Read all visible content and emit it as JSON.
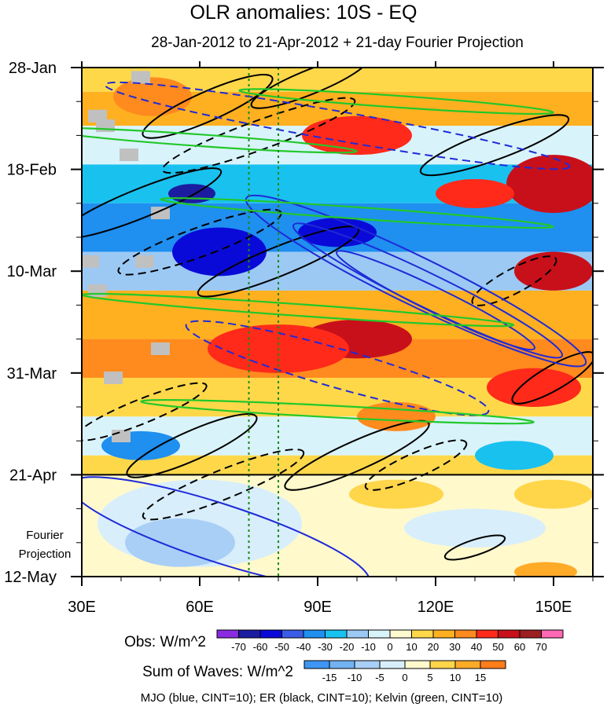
{
  "chart_data": {
    "type": "heatmap",
    "title": "OLR anomalies: 10S - EQ",
    "subtitle": "28-Jan-2012 to 21-Apr-2012 + 21-day Fourier Projection",
    "xlim": [
      30,
      160
    ],
    "ylim_days": [
      0,
      105
    ],
    "x_ticks": [
      {
        "value": 30,
        "label": "30E"
      },
      {
        "value": 60,
        "label": "60E"
      },
      {
        "value": 90,
        "label": "90E"
      },
      {
        "value": 120,
        "label": "120E"
      },
      {
        "value": 150,
        "label": "150E"
      }
    ],
    "y_ticks": [
      {
        "day": 0,
        "label": "28-Jan"
      },
      {
        "day": 21,
        "label": "18-Feb"
      },
      {
        "day": 42,
        "label": "10-Mar"
      },
      {
        "day": 63,
        "label": "31-Mar"
      },
      {
        "day": 84,
        "label": "21-Apr"
      },
      {
        "day": 105,
        "label": "12-May"
      }
    ],
    "projection_start_day": 84,
    "projection_label": [
      "Fourier",
      "Projection"
    ],
    "reference_lines_lon": [
      72.5,
      80
    ],
    "obs_legend": {
      "label": "Obs: W/m^2",
      "levels": [
        "-70",
        "-60",
        "-50",
        "-40",
        "-30",
        "-20",
        "-10",
        "0",
        "10",
        "20",
        "30",
        "40",
        "50",
        "60",
        "70"
      ],
      "colors": [
        "#8a2be2",
        "#1c1ca0",
        "#0a0ad8",
        "#3a5ce6",
        "#1f8ff0",
        "#19c1ef",
        "#9bc9f4",
        "#d9f3fb",
        "#fffad0",
        "#ffd84a",
        "#ffb020",
        "#ff8a1e",
        "#ff2a1a",
        "#c8101a",
        "#9c2020",
        "#ff69b4"
      ]
    },
    "waves_legend": {
      "label": "Sum of Waves: W/m^2",
      "levels": [
        "-15",
        "-10",
        "-5",
        "0",
        "5",
        "10",
        "15"
      ],
      "colors": [
        "#3e96f4",
        "#73b2f2",
        "#a9cff6",
        "#d8eefb",
        "#fff9cc",
        "#ffd54a",
        "#ffab28",
        "#ff7d1a"
      ]
    },
    "footer": "MJO (blue, CINT=10); ER (black, CINT=10); Kelvin (green, CINT=10)",
    "bands": [
      {
        "lon0": 30,
        "lon1": 160,
        "d0": 0,
        "d1": 5,
        "value": 10
      },
      {
        "lon0": 30,
        "lon1": 160,
        "d0": 5,
        "d1": 12,
        "value": 20
      },
      {
        "lon0": 30,
        "lon1": 160,
        "d0": 12,
        "d1": 20,
        "value": -10
      },
      {
        "lon0": 30,
        "lon1": 160,
        "d0": 20,
        "d1": 28,
        "value": -30
      },
      {
        "lon0": 30,
        "lon1": 160,
        "d0": 28,
        "d1": 38,
        "value": -40
      },
      {
        "lon0": 30,
        "lon1": 160,
        "d0": 38,
        "d1": 46,
        "value": -20
      },
      {
        "lon0": 30,
        "lon1": 160,
        "d0": 46,
        "d1": 56,
        "value": 20
      },
      {
        "lon0": 30,
        "lon1": 160,
        "d0": 56,
        "d1": 64,
        "value": 30
      },
      {
        "lon0": 30,
        "lon1": 160,
        "d0": 64,
        "d1": 72,
        "value": 10
      },
      {
        "lon0": 30,
        "lon1": 160,
        "d0": 72,
        "d1": 80,
        "value": -10
      },
      {
        "lon0": 30,
        "lon1": 160,
        "d0": 80,
        "d1": 84,
        "value": 10
      }
    ],
    "patches": [
      {
        "lon": 48,
        "day": 6,
        "rlon": 10,
        "rday": 4,
        "value": 30
      },
      {
        "lon": 100,
        "day": 14,
        "rlon": 14,
        "rday": 4,
        "value": 40
      },
      {
        "lon": 150,
        "day": 24,
        "rlon": 12,
        "rday": 6,
        "value": 50
      },
      {
        "lon": 130,
        "day": 26,
        "rlon": 10,
        "rday": 3,
        "value": 40
      },
      {
        "lon": 65,
        "day": 38,
        "rlon": 12,
        "rday": 5,
        "value": -60
      },
      {
        "lon": 95,
        "day": 34,
        "rlon": 10,
        "rday": 3,
        "value": -60
      },
      {
        "lon": 58,
        "day": 26,
        "rlon": 6,
        "rday": 2,
        "value": -70
      },
      {
        "lon": 100,
        "day": 56,
        "rlon": 14,
        "rday": 4,
        "value": 50
      },
      {
        "lon": 80,
        "day": 58,
        "rlon": 18,
        "rday": 5,
        "value": 40
      },
      {
        "lon": 150,
        "day": 42,
        "rlon": 10,
        "rday": 4,
        "value": 50
      },
      {
        "lon": 145,
        "day": 66,
        "rlon": 12,
        "rday": 4,
        "value": 40
      },
      {
        "lon": 110,
        "day": 72,
        "rlon": 10,
        "rday": 3,
        "value": 30
      },
      {
        "lon": 45,
        "day": 78,
        "rlon": 10,
        "rday": 3,
        "value": -40
      },
      {
        "lon": 140,
        "day": 80,
        "rlon": 10,
        "rday": 3,
        "value": -30
      }
    ],
    "proj_bands": [
      {
        "lon0": 30,
        "lon1": 160,
        "d0": 84,
        "d1": 105,
        "value": 0
      }
    ],
    "proj_patches": [
      {
        "lon": 60,
        "day": 94,
        "rlon": 26,
        "rday": 9,
        "value": -5
      },
      {
        "lon": 55,
        "day": 98,
        "rlon": 14,
        "rday": 5,
        "value": -10
      },
      {
        "lon": 130,
        "day": 95,
        "rlon": 18,
        "rday": 4,
        "value": -5
      },
      {
        "lon": 110,
        "day": 88,
        "rlon": 12,
        "rday": 3,
        "value": 5
      },
      {
        "lon": 148,
        "day": 104,
        "rlon": 8,
        "rday": 2,
        "value": 10
      },
      {
        "lon": 150,
        "day": 88,
        "rlon": 10,
        "rday": 3,
        "value": 5
      }
    ],
    "contours": [
      {
        "series": "ER",
        "color": "#000000",
        "dash": false,
        "lon": 62,
        "day": 8,
        "rlon": 18,
        "rday": 3,
        "angle": -24
      },
      {
        "series": "ER",
        "color": "#000000",
        "dash": false,
        "lon": 88,
        "day": 3,
        "rlon": 16,
        "rday": 2.5,
        "angle": -22
      },
      {
        "series": "ER",
        "color": "#000000",
        "dash": false,
        "lon": 45,
        "day": 28,
        "rlon": 22,
        "rday": 3,
        "angle": -22
      },
      {
        "series": "ER",
        "color": "#000000",
        "dash": false,
        "lon": 80,
        "day": 40,
        "rlon": 22,
        "rday": 3,
        "angle": -22
      },
      {
        "series": "ER",
        "color": "#000000",
        "dash": false,
        "lon": 135,
        "day": 16,
        "rlon": 20,
        "rday": 3,
        "angle": -20
      },
      {
        "series": "ER",
        "color": "#000000",
        "dash": false,
        "lon": 58,
        "day": 78,
        "rlon": 18,
        "rday": 3,
        "angle": -24
      },
      {
        "series": "ER",
        "color": "#000000",
        "dash": false,
        "lon": 100,
        "day": 80,
        "rlon": 20,
        "rday": 3,
        "angle": -24
      },
      {
        "series": "ER",
        "color": "#000000",
        "dash": false,
        "lon": 130,
        "day": 99,
        "rlon": 8,
        "rday": 1.6,
        "angle": -18
      },
      {
        "series": "ER",
        "color": "#000000",
        "dash": false,
        "lon": 150,
        "day": 64,
        "rlon": 12,
        "rday": 2.5,
        "angle": -30
      },
      {
        "series": "ER",
        "color": "#000000",
        "dash": true,
        "lon": 75,
        "day": 14,
        "rlon": 26,
        "rday": 3,
        "angle": -20
      },
      {
        "series": "ER",
        "color": "#000000",
        "dash": true,
        "lon": 60,
        "day": 36,
        "rlon": 22,
        "rday": 3,
        "angle": -20
      },
      {
        "series": "ER",
        "color": "#000000",
        "dash": true,
        "lon": 45,
        "day": 71,
        "rlon": 18,
        "rday": 2.5,
        "angle": -22
      },
      {
        "series": "ER",
        "color": "#000000",
        "dash": true,
        "lon": 66,
        "day": 86,
        "rlon": 22,
        "rday": 3,
        "angle": -22
      },
      {
        "series": "ER",
        "color": "#000000",
        "dash": true,
        "lon": 115,
        "day": 82,
        "rlon": 14,
        "rday": 2.5,
        "angle": -24
      },
      {
        "series": "ER",
        "color": "#000000",
        "dash": true,
        "lon": 140,
        "day": 44,
        "rlon": 12,
        "rday": 2.5,
        "angle": -28
      },
      {
        "series": "MJO",
        "color": "#1f2ad8",
        "dash": false,
        "lon": 115,
        "day": 44,
        "rlon": 48,
        "rday": 5,
        "angle": 26
      },
      {
        "series": "MJO",
        "color": "#1f2ad8",
        "dash": false,
        "lon": 118,
        "day": 46,
        "rlon": 38,
        "rday": 3.5,
        "angle": 26
      },
      {
        "series": "MJO",
        "color": "#1f2ad8",
        "dash": false,
        "lon": 120,
        "day": 48,
        "rlon": 28,
        "rday": 2.5,
        "angle": 26
      },
      {
        "series": "MJO",
        "color": "#1f2ad8",
        "dash": false,
        "lon": 65,
        "day": 96,
        "rlon": 40,
        "rday": 6,
        "angle": 18
      },
      {
        "series": "MJO",
        "color": "#1f2ad8",
        "dash": true,
        "lon": 95,
        "day": 62,
        "rlon": 40,
        "rday": 4,
        "angle": 16
      },
      {
        "series": "MJO",
        "color": "#1f2ad8",
        "dash": true,
        "lon": 95,
        "day": 12,
        "rlon": 60,
        "rday": 3,
        "angle": 10
      },
      {
        "series": "Kelvin",
        "color": "#22c82a",
        "dash": false,
        "lon": 60,
        "day": 15,
        "rlon": 40,
        "rday": 1.2,
        "angle": 4
      },
      {
        "series": "Kelvin",
        "color": "#22c82a",
        "dash": false,
        "lon": 100,
        "day": 30,
        "rlon": 50,
        "rday": 1.2,
        "angle": 4
      },
      {
        "series": "Kelvin",
        "color": "#22c82a",
        "dash": false,
        "lon": 85,
        "day": 50,
        "rlon": 55,
        "rday": 1.2,
        "angle": 4
      },
      {
        "series": "Kelvin",
        "color": "#22c82a",
        "dash": false,
        "lon": 95,
        "day": 71,
        "rlon": 50,
        "rday": 1.2,
        "angle": 3
      },
      {
        "series": "Kelvin",
        "color": "#22c82a",
        "dash": false,
        "lon": 110,
        "day": 7,
        "rlon": 40,
        "rday": 1.2,
        "angle": 4
      }
    ],
    "missing": [
      {
        "lon": 34,
        "day": 10
      },
      {
        "lon": 36,
        "day": 12
      },
      {
        "lon": 45,
        "day": 2
      },
      {
        "lon": 42,
        "day": 18
      },
      {
        "lon": 50,
        "day": 30
      },
      {
        "lon": 32,
        "day": 40
      },
      {
        "lon": 46,
        "day": 40
      },
      {
        "lon": 34,
        "day": 46
      },
      {
        "lon": 50,
        "day": 58
      },
      {
        "lon": 38,
        "day": 64
      },
      {
        "lon": 40,
        "day": 76
      }
    ]
  }
}
